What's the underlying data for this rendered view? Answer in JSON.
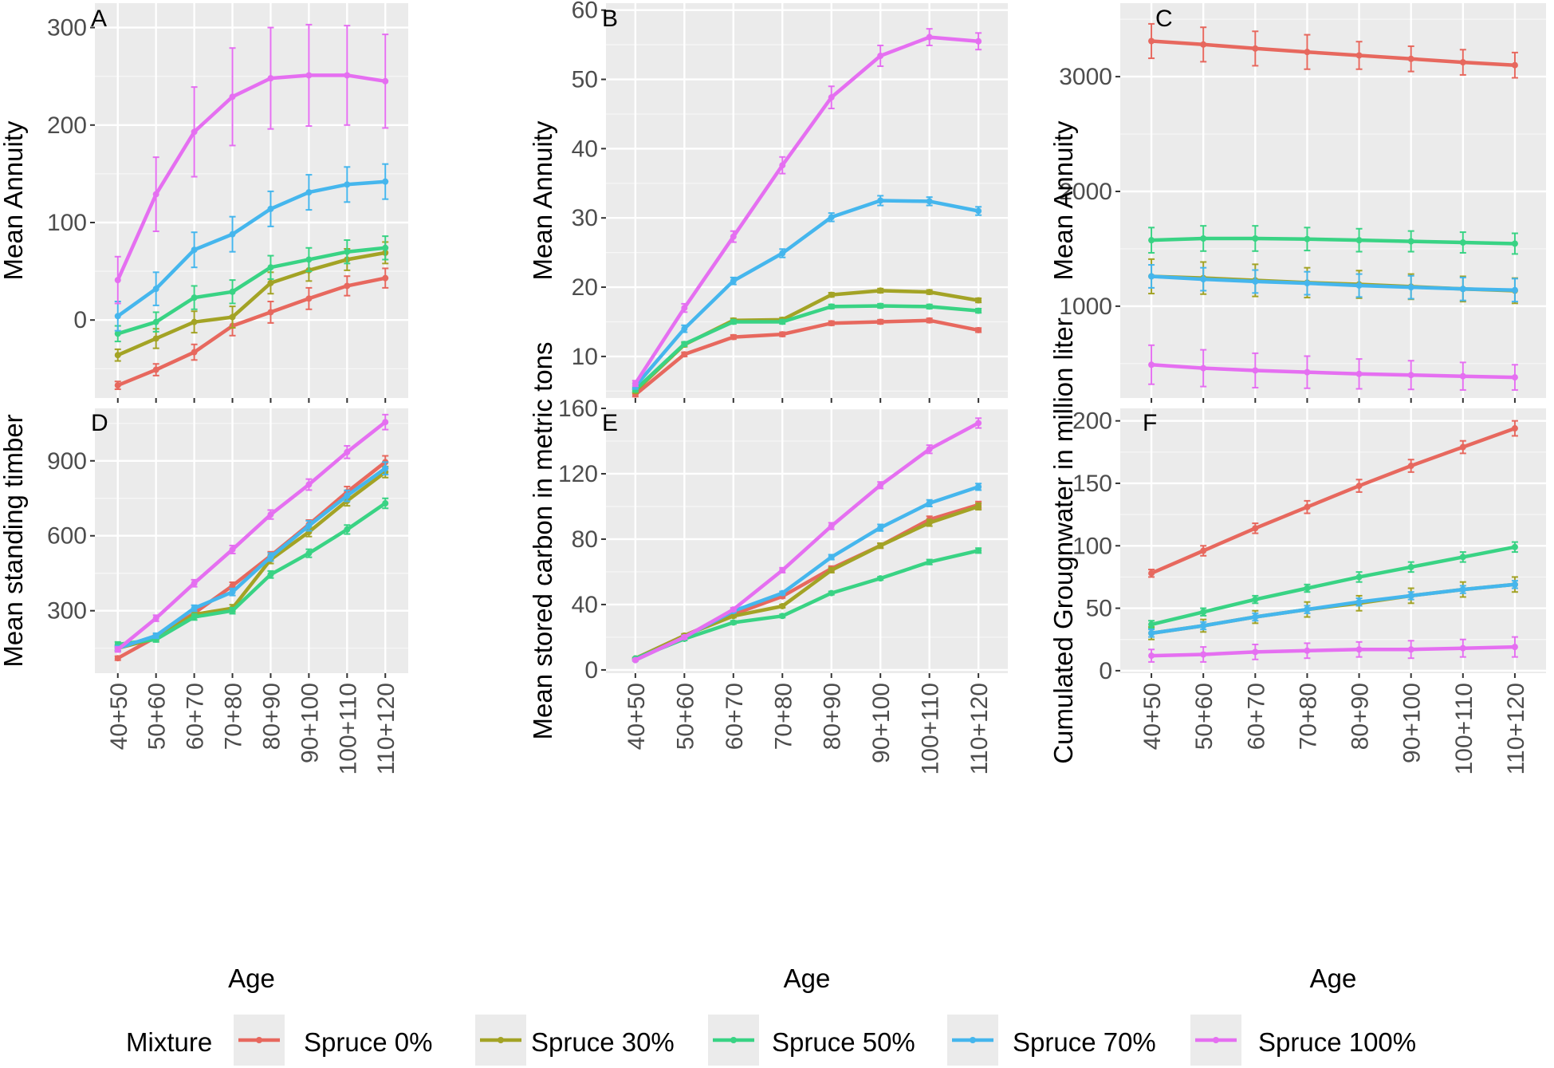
{
  "chart_data": [
    {
      "type": "line",
      "tag": "A",
      "xlabel": "",
      "ylabel": "Mean Annuity",
      "categories": [
        "40+50",
        "50+60",
        "60+70",
        "70+80",
        "80+90",
        "90+100",
        "100+110",
        "110+120"
      ],
      "ylim": [
        -80,
        325
      ],
      "yticks": [
        0,
        100,
        200,
        300
      ],
      "grid": true,
      "error_bars": true,
      "series": [
        {
          "name": "Spruce 0%",
          "values": [
            -67,
            -51,
            -33,
            -6,
            8,
            22,
            35,
            43
          ],
          "error": [
            4,
            6,
            8,
            10,
            11,
            11,
            10,
            10
          ]
        },
        {
          "name": "Spruce 30%",
          "values": [
            -36,
            -19,
            -2,
            3,
            38,
            51,
            62,
            69
          ],
          "error": [
            6,
            10,
            11,
            11,
            11,
            11,
            11,
            11
          ]
        },
        {
          "name": "Spruce 50%",
          "values": [
            -14,
            -2,
            23,
            29,
            54,
            62,
            70,
            74
          ],
          "error": [
            8,
            10,
            12,
            12,
            12,
            12,
            12,
            12
          ]
        },
        {
          "name": "Spruce 70%",
          "values": [
            4,
            32,
            72,
            88,
            114,
            131,
            139,
            142
          ],
          "error": [
            15,
            17,
            18,
            18,
            18,
            18,
            18,
            18
          ]
        },
        {
          "name": "Spruce 100%",
          "values": [
            41,
            129,
            193,
            229,
            248,
            251,
            251,
            245
          ],
          "error": [
            24,
            38,
            46,
            50,
            52,
            52,
            51,
            48
          ]
        }
      ]
    },
    {
      "type": "line",
      "tag": "B",
      "xlabel": "",
      "ylabel": "Mean Annuity",
      "categories": [
        "40+50",
        "50+60",
        "60+70",
        "70+80",
        "80+90",
        "90+100",
        "100+110",
        "110+120"
      ],
      "ylim": [
        4,
        61
      ],
      "yticks": [
        10,
        20,
        30,
        40,
        50,
        60
      ],
      "grid": true,
      "error_bars": true,
      "series": [
        {
          "name": "Spruce 0%",
          "values": [
            4.5,
            10.3,
            12.8,
            13.2,
            14.8,
            15.0,
            15.2,
            13.8
          ],
          "error": [
            0.3,
            0.3,
            0.3,
            0.3,
            0.3,
            0.3,
            0.3,
            0.3
          ]
        },
        {
          "name": "Spruce 30%",
          "values": [
            5.0,
            11.7,
            15.2,
            15.3,
            18.9,
            19.5,
            19.3,
            18.1
          ],
          "error": [
            0.3,
            0.3,
            0.3,
            0.3,
            0.3,
            0.3,
            0.3,
            0.3
          ]
        },
        {
          "name": "Spruce 50%",
          "values": [
            5.2,
            11.8,
            15.0,
            15.0,
            17.2,
            17.3,
            17.2,
            16.6
          ],
          "error": [
            0.3,
            0.3,
            0.3,
            0.3,
            0.3,
            0.3,
            0.3,
            0.3
          ]
        },
        {
          "name": "Spruce 70%",
          "values": [
            5.7,
            14.0,
            20.9,
            24.9,
            30.1,
            32.5,
            32.4,
            31.0
          ],
          "error": [
            0.4,
            0.5,
            0.5,
            0.6,
            0.6,
            0.7,
            0.6,
            0.6
          ]
        },
        {
          "name": "Spruce 100%",
          "values": [
            6.1,
            17.0,
            27.3,
            37.6,
            47.4,
            53.4,
            56.1,
            55.5
          ],
          "error": [
            0.4,
            0.6,
            0.8,
            1.2,
            1.6,
            1.5,
            1.2,
            1.2
          ]
        }
      ]
    },
    {
      "type": "line",
      "tag": "C",
      "xlabel": "",
      "ylabel": "Mean Annuity",
      "categories": [
        "40+50",
        "50+60",
        "60+70",
        "70+80",
        "80+90",
        "90+100",
        "100+110",
        "110+120"
      ],
      "ylim": [
        200,
        3640
      ],
      "yticks": [
        1000,
        2000,
        3000
      ],
      "grid": true,
      "error_bars": true,
      "series": [
        {
          "name": "Spruce 0%",
          "values": [
            3310,
            3280,
            3245,
            3215,
            3185,
            3155,
            3125,
            3100
          ],
          "error": [
            150,
            150,
            150,
            150,
            120,
            110,
            110,
            110
          ]
        },
        {
          "name": "Spruce 30%",
          "values": [
            1260,
            1245,
            1225,
            1205,
            1190,
            1170,
            1150,
            1135
          ],
          "error": [
            150,
            140,
            140,
            130,
            120,
            110,
            110,
            110
          ]
        },
        {
          "name": "Spruce 50%",
          "values": [
            1575,
            1590,
            1590,
            1585,
            1575,
            1565,
            1555,
            1545
          ],
          "error": [
            110,
            110,
            110,
            100,
            100,
            90,
            90,
            90
          ]
        },
        {
          "name": "Spruce 70%",
          "values": [
            1260,
            1235,
            1215,
            1200,
            1180,
            1165,
            1150,
            1140
          ],
          "error": [
            100,
            100,
            100,
            100,
            100,
            100,
            100,
            100
          ]
        },
        {
          "name": "Spruce 100%",
          "values": [
            490,
            460,
            440,
            425,
            410,
            400,
            390,
            380
          ],
          "error": [
            170,
            160,
            150,
            140,
            130,
            125,
            120,
            110
          ]
        }
      ]
    },
    {
      "type": "line",
      "tag": "D",
      "xlabel": "Age",
      "ylabel": "Mean standing timber",
      "categories": [
        "40+50",
        "50+60",
        "60+70",
        "70+80",
        "80+90",
        "90+100",
        "100+110",
        "110+120"
      ],
      "ylim": [
        50,
        1110
      ],
      "yticks": [
        300,
        600,
        900
      ],
      "grid": true,
      "error_bars": true,
      "series": [
        {
          "name": "Spruce 0%",
          "values": [
            110,
            195,
            290,
            400,
            520,
            645,
            775,
            895
          ],
          "error": [
            8,
            10,
            12,
            14,
            16,
            18,
            22,
            25
          ]
        },
        {
          "name": "Spruce 30%",
          "values": [
            150,
            190,
            285,
            310,
            505,
            615,
            740,
            855
          ],
          "error": [
            10,
            10,
            12,
            14,
            16,
            18,
            20,
            22
          ]
        },
        {
          "name": "Spruce 50%",
          "values": [
            165,
            185,
            275,
            300,
            445,
            530,
            625,
            730
          ],
          "error": [
            10,
            10,
            12,
            12,
            14,
            16,
            18,
            20
          ]
        },
        {
          "name": "Spruce 70%",
          "values": [
            150,
            200,
            310,
            375,
            515,
            640,
            760,
            870
          ],
          "error": [
            10,
            10,
            12,
            14,
            16,
            20,
            22,
            25
          ]
        },
        {
          "name": "Spruce 100%",
          "values": [
            145,
            270,
            410,
            545,
            685,
            805,
            935,
            1055
          ],
          "error": [
            10,
            12,
            14,
            16,
            18,
            22,
            25,
            30
          ]
        }
      ]
    },
    {
      "type": "line",
      "tag": "E",
      "xlabel": "Age",
      "ylabel": "Mean stored carbon in metric tons",
      "categories": [
        "40+50",
        "50+60",
        "60+70",
        "70+80",
        "80+90",
        "90+100",
        "100+110",
        "110+120"
      ],
      "ylim": [
        -2,
        160
      ],
      "yticks": [
        0,
        40,
        80,
        120,
        160
      ],
      "grid": true,
      "error_bars": true,
      "series": [
        {
          "name": "Spruce 0%",
          "values": [
            7,
            21,
            34,
            45,
            62,
            76,
            92,
            101
          ],
          "error": [
            0.5,
            1,
            1,
            1,
            1.5,
            1.5,
            2,
            2
          ]
        },
        {
          "name": "Spruce 30%",
          "values": [
            7,
            21,
            33,
            39,
            61,
            76,
            90,
            100
          ],
          "error": [
            0.5,
            1,
            1,
            1,
            1.5,
            1.5,
            2,
            2
          ]
        },
        {
          "name": "Spruce 50%",
          "values": [
            7,
            19,
            29,
            33,
            47,
            56,
            66,
            73
          ],
          "error": [
            0.5,
            1,
            1,
            1,
            1,
            1,
            1.5,
            1.5
          ]
        },
        {
          "name": "Spruce 70%",
          "values": [
            6,
            20,
            36,
            47,
            69,
            87,
            102,
            112
          ],
          "error": [
            0.5,
            1,
            1,
            1,
            1.5,
            2,
            2,
            2
          ]
        },
        {
          "name": "Spruce 100%",
          "values": [
            6,
            20,
            37,
            61,
            88,
            113,
            135,
            151
          ],
          "error": [
            0.5,
            1,
            1,
            1.5,
            2,
            2,
            2.5,
            3
          ]
        }
      ]
    },
    {
      "type": "line",
      "tag": "F",
      "xlabel": "Age",
      "ylabel": "Cumulated Grougnwater in million liter",
      "categories": [
        "40+50",
        "50+60",
        "60+70",
        "70+80",
        "80+90",
        "90+100",
        "100+110",
        "110+120"
      ],
      "ylim": [
        -2,
        210
      ],
      "yticks": [
        0,
        50,
        100,
        150,
        200
      ],
      "grid": true,
      "error_bars": true,
      "series": [
        {
          "name": "Spruce 0%",
          "values": [
            78,
            96,
            114,
            131,
            148,
            164,
            179,
            194
          ],
          "error": [
            3,
            4,
            4,
            5,
            5,
            5,
            5,
            6
          ]
        },
        {
          "name": "Spruce 30%",
          "values": [
            30,
            36,
            43,
            49,
            54,
            60,
            65,
            69
          ],
          "error": [
            5,
            5,
            5,
            6,
            6,
            6,
            6,
            6
          ]
        },
        {
          "name": "Spruce 50%",
          "values": [
            37,
            47,
            57,
            66,
            75,
            83,
            91,
            99
          ],
          "error": [
            3,
            3,
            3,
            3,
            4,
            4,
            4,
            4
          ]
        },
        {
          "name": "Spruce 70%",
          "values": [
            30,
            36,
            43,
            49,
            55,
            60,
            65,
            69
          ],
          "error": [
            3,
            3,
            3,
            3,
            3,
            3,
            3,
            3
          ]
        },
        {
          "name": "Spruce 100%",
          "values": [
            12,
            13,
            15,
            16,
            17,
            17,
            18,
            19
          ],
          "error": [
            5,
            6,
            6,
            6,
            6,
            7,
            7,
            8
          ]
        }
      ]
    }
  ],
  "legend": {
    "title": "Mixture",
    "placement": "bottom",
    "items": [
      {
        "label": "Spruce 0%",
        "color": "#E7685E"
      },
      {
        "label": "Spruce 30%",
        "color": "#A3A325"
      },
      {
        "label": "Spruce 50%",
        "color": "#39D384"
      },
      {
        "label": "Spruce 70%",
        "color": "#45B6ED"
      },
      {
        "label": "Spruce 100%",
        "color": "#E56FF1"
      }
    ]
  }
}
